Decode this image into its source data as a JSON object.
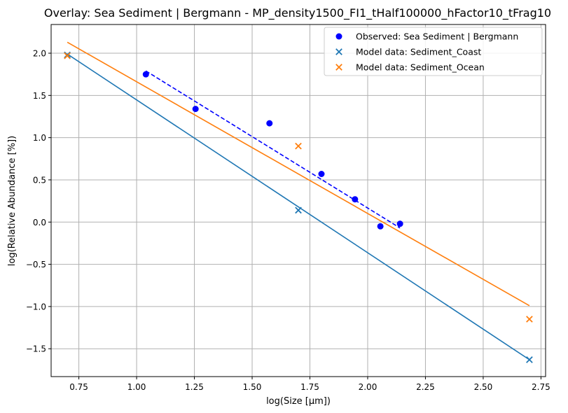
{
  "chart_data": {
    "type": "scatter",
    "title": "Overlay: Sea Sediment | Bergmann - MP_density1500_FI1_tHalf100000_hFactor10_tFrag10",
    "xlabel": "log(Size [µm])",
    "ylabel": "log(Relative Abundance [%])",
    "xlim": [
      0.63,
      2.77
    ],
    "ylim": [
      -1.83,
      2.34
    ],
    "xticks": [
      0.75,
      1.0,
      1.25,
      1.5,
      1.75,
      2.0,
      2.25,
      2.5,
      2.75
    ],
    "xtick_labels": [
      "0.75",
      "1.00",
      "1.25",
      "1.50",
      "1.75",
      "2.00",
      "2.25",
      "2.50",
      "2.75"
    ],
    "yticks": [
      -1.5,
      -1.0,
      -0.5,
      0.0,
      0.5,
      1.0,
      1.5,
      2.0
    ],
    "ytick_labels": [
      "−1.5",
      "−1.0",
      "−0.5",
      "0.0",
      "0.5",
      "1.0",
      "1.5",
      "2.0"
    ],
    "grid": true,
    "legend_position": "top-right",
    "colors": {
      "observed": "#0000ff",
      "coast": "#1f77b4",
      "ocean": "#ff7f0e",
      "grid": "#b0b0b0"
    },
    "series": [
      {
        "name": "Observed: Sea Sediment | Bergmann",
        "marker": "circle",
        "color": "#0000ff",
        "x": [
          1.04,
          1.255,
          1.575,
          1.8,
          1.945,
          2.055,
          2.14
        ],
        "y": [
          1.75,
          1.34,
          1.17,
          0.57,
          0.27,
          -0.05,
          -0.02
        ]
      },
      {
        "name": "Model data: Sediment_Coast",
        "marker": "x",
        "color": "#1f77b4",
        "x": [
          0.7,
          1.7,
          2.7
        ],
        "y": [
          1.98,
          0.14,
          -1.63
        ]
      },
      {
        "name": "Model data: Sediment_Ocean",
        "marker": "x",
        "color": "#ff7f0e",
        "x": [
          0.7,
          1.7,
          2.7
        ],
        "y": [
          1.97,
          0.9,
          -1.15
        ]
      }
    ],
    "fit_lines": [
      {
        "series": "Observed: Sea Sediment | Bergmann",
        "style": "dashed",
        "color": "#0000ff",
        "x": [
          1.04,
          2.14
        ],
        "y": [
          1.79,
          -0.07
        ]
      },
      {
        "series": "Model data: Sediment_Coast",
        "style": "solid",
        "color": "#1f77b4",
        "x": [
          0.7,
          2.7
        ],
        "y": [
          1.99,
          -1.63
        ]
      },
      {
        "series": "Model data: Sediment_Ocean",
        "style": "solid",
        "color": "#ff7f0e",
        "x": [
          0.7,
          2.7
        ],
        "y": [
          2.13,
          -0.99
        ]
      }
    ]
  }
}
